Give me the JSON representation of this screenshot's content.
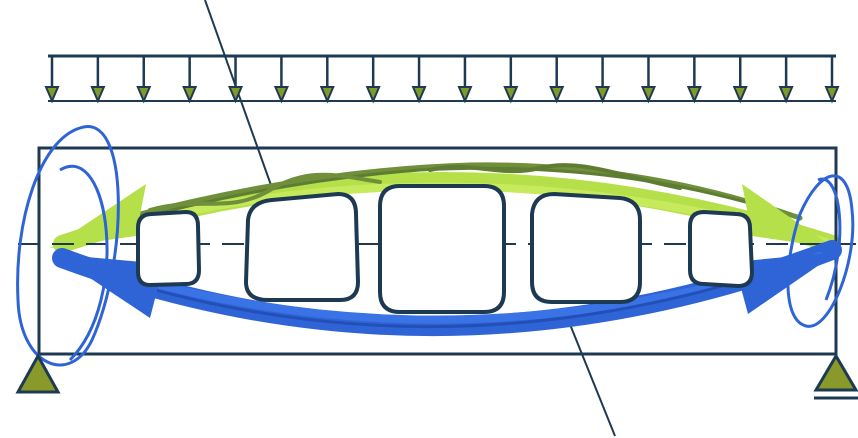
{
  "diagram": {
    "kind": "beam-with-openings",
    "distributed_load": {
      "arrow_count": 18,
      "direction": "down"
    },
    "supports": [
      "left-pin",
      "right-roller"
    ],
    "openings": [
      "small",
      "large",
      "largest",
      "large",
      "small"
    ],
    "arches": [
      "compression-arch",
      "tension-arch"
    ],
    "colors": {
      "outline": "#1e3a52",
      "arrow_fill": "#7f9a2a",
      "compression_light": "#b5e04a",
      "compression_dark": "#6f8f3a",
      "tension": "#2f64d6",
      "support_fill": "#8a9a2a"
    }
  }
}
